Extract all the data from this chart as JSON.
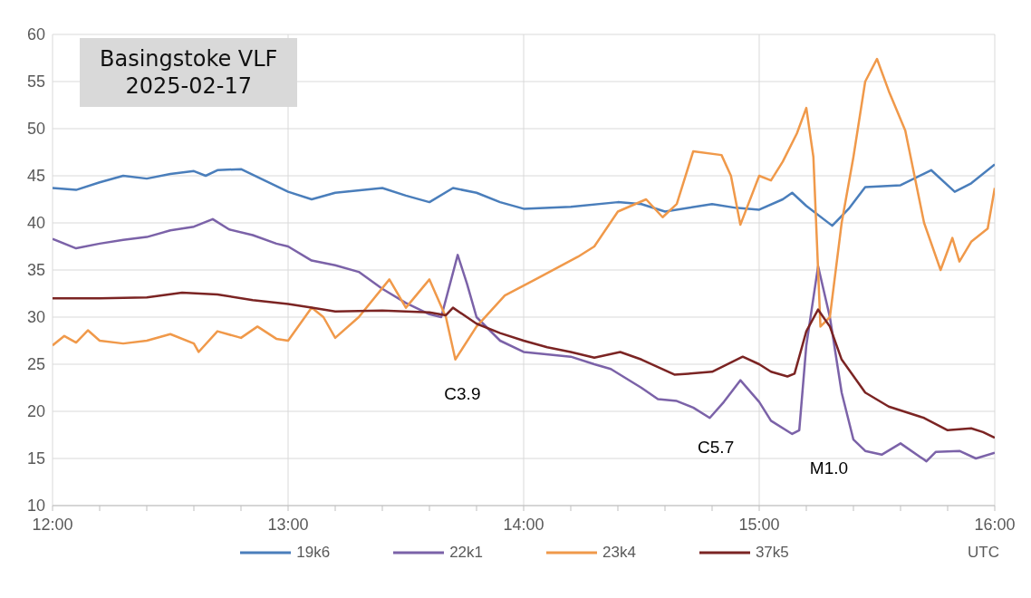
{
  "chart_data": {
    "type": "line",
    "title": "Basingstoke VLF",
    "subtitle": "2025-02-17",
    "xlabel": "UTC",
    "xlim": [
      12,
      16
    ],
    "xticks": [
      {
        "value": 12,
        "label": "12:00"
      },
      {
        "value": 12.2,
        "label": null
      },
      {
        "value": 12.4,
        "label": null
      },
      {
        "value": 12.6,
        "label": null
      },
      {
        "value": 12.8,
        "label": null
      },
      {
        "value": 13,
        "label": "13:00"
      },
      {
        "value": 13.2,
        "label": null
      },
      {
        "value": 13.4,
        "label": null
      },
      {
        "value": 13.6,
        "label": null
      },
      {
        "value": 13.8,
        "label": null
      },
      {
        "value": 14,
        "label": "14:00"
      },
      {
        "value": 14.2,
        "label": null
      },
      {
        "value": 14.4,
        "label": null
      },
      {
        "value": 14.6,
        "label": null
      },
      {
        "value": 14.8,
        "label": null
      },
      {
        "value": 15,
        "label": "15:00"
      },
      {
        "value": 15.2,
        "label": null
      },
      {
        "value": 15.4,
        "label": null
      },
      {
        "value": 15.6,
        "label": null
      },
      {
        "value": 15.8,
        "label": null
      },
      {
        "value": 16,
        "label": "16:00"
      }
    ],
    "ylim": [
      10,
      60
    ],
    "yticks": [
      10,
      15,
      20,
      25,
      30,
      35,
      40,
      45,
      50,
      55,
      60
    ],
    "grid": true,
    "legend": "bottom",
    "marker": "none",
    "line_style": "solid",
    "series": [
      {
        "name": "19k6",
        "color": "#4a7ebb",
        "x": [
          12,
          12.1,
          12.2,
          12.3,
          12.4,
          12.5,
          12.6,
          12.65,
          12.7,
          12.8,
          12.9,
          13,
          13.1,
          13.2,
          13.4,
          13.5,
          13.6,
          13.7,
          13.8,
          13.9,
          14,
          14.2,
          14.4,
          14.5,
          14.6,
          14.8,
          14.9,
          15,
          15.1,
          15.14,
          15.2,
          15.31,
          15.38,
          15.45,
          15.6,
          15.73,
          15.83,
          15.9,
          16
        ],
        "values": [
          43.7,
          43.5,
          44.3,
          45,
          44.7,
          45.2,
          45.5,
          45,
          45.6,
          45.7,
          44.5,
          43.3,
          42.5,
          43.2,
          43.7,
          42.9,
          42.2,
          43.7,
          43.2,
          42.2,
          41.5,
          41.7,
          42.2,
          42,
          41.2,
          42,
          41.6,
          41.4,
          42.5,
          43.2,
          41.8,
          39.7,
          41.5,
          43.8,
          44,
          45.6,
          43.3,
          44.2,
          46.2
        ]
      },
      {
        "name": "22k1",
        "color": "#7b62a8",
        "x": [
          12,
          12.1,
          12.2,
          12.3,
          12.4,
          12.5,
          12.6,
          12.68,
          12.75,
          12.85,
          12.95,
          13,
          13.1,
          13.2,
          13.3,
          13.4,
          13.5,
          13.6,
          13.65,
          13.72,
          13.76,
          13.8,
          13.9,
          14,
          14.2,
          14.3,
          14.37,
          14.5,
          14.57,
          14.65,
          14.72,
          14.79,
          14.85,
          14.92,
          15,
          15.05,
          15.14,
          15.17,
          15.2,
          15.25,
          15.3,
          15.35,
          15.4,
          15.45,
          15.52,
          15.6,
          15.71,
          15.75,
          15.85,
          15.92,
          16
        ],
        "values": [
          38.3,
          37.3,
          37.8,
          38.2,
          38.5,
          39.2,
          39.6,
          40.4,
          39.3,
          38.7,
          37.8,
          37.5,
          36,
          35.5,
          34.8,
          33,
          31.5,
          30.3,
          30,
          36.6,
          33.5,
          30,
          27.5,
          26.3,
          25.8,
          25,
          24.5,
          22.5,
          21.3,
          21.1,
          20.4,
          19.3,
          21,
          23.3,
          21,
          19,
          17.6,
          18,
          27,
          35.4,
          30,
          22,
          17,
          15.8,
          15.4,
          16.6,
          14.7,
          15.7,
          15.8,
          15,
          15.6
        ]
      },
      {
        "name": "23k4",
        "color": "#f0994a",
        "x": [
          12,
          12.05,
          12.1,
          12.15,
          12.2,
          12.3,
          12.4,
          12.5,
          12.6,
          12.62,
          12.7,
          12.8,
          12.87,
          12.95,
          13,
          13.1,
          13.15,
          13.2,
          13.3,
          13.43,
          13.5,
          13.6,
          13.67,
          13.71,
          13.8,
          13.92,
          14.05,
          14.23,
          14.3,
          14.4,
          14.52,
          14.59,
          14.65,
          14.72,
          14.84,
          14.88,
          14.92,
          15,
          15.05,
          15.1,
          15.16,
          15.2,
          15.23,
          15.26,
          15.3,
          15.35,
          15.4,
          15.45,
          15.5,
          15.55,
          15.62,
          15.7,
          15.77,
          15.82,
          15.85,
          15.9,
          15.97,
          16
        ],
        "values": [
          27,
          28,
          27.3,
          28.6,
          27.5,
          27.2,
          27.5,
          28.2,
          27.2,
          26.3,
          28.5,
          27.8,
          29,
          27.7,
          27.5,
          31,
          30,
          27.8,
          30,
          34,
          31,
          34,
          30,
          25.5,
          29,
          32.3,
          34,
          36.4,
          37.5,
          41.2,
          42.5,
          40.6,
          42,
          47.6,
          47.2,
          45,
          39.8,
          45,
          44.5,
          46.5,
          49.5,
          52.2,
          47,
          29,
          30,
          40,
          47,
          55,
          57.4,
          54,
          49.8,
          40,
          35,
          38.4,
          35.9,
          38,
          39.4,
          43.7
        ]
      },
      {
        "name": "37k5",
        "color": "#7b2423",
        "x": [
          12,
          12.2,
          12.4,
          12.55,
          12.7,
          12.85,
          13,
          13.1,
          13.2,
          13.4,
          13.6,
          13.67,
          13.7,
          13.8,
          13.9,
          14,
          14.1,
          14.2,
          14.3,
          14.41,
          14.5,
          14.64,
          14.7,
          14.8,
          14.93,
          15,
          15.05,
          15.12,
          15.15,
          15.2,
          15.25,
          15.3,
          15.35,
          15.45,
          15.55,
          15.7,
          15.8,
          15.9,
          15.95,
          16
        ],
        "values": [
          32,
          32,
          32.1,
          32.6,
          32.4,
          31.8,
          31.4,
          31,
          30.6,
          30.7,
          30.5,
          30.2,
          31,
          29.3,
          28.3,
          27.5,
          26.8,
          26.3,
          25.7,
          26.3,
          25.5,
          23.9,
          24,
          24.2,
          25.8,
          25,
          24.2,
          23.7,
          24,
          28.5,
          30.8,
          29,
          25.5,
          22,
          20.5,
          19.3,
          18,
          18.2,
          17.8,
          17.2
        ]
      }
    ],
    "annotations": [
      "C3.9",
      "C5.7",
      "M1.0"
    ]
  }
}
